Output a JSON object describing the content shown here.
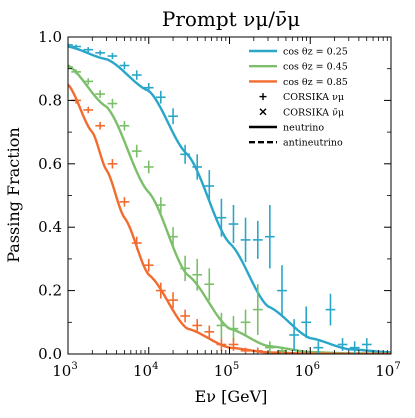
{
  "chart_data": {
    "type": "line",
    "title": "Prompt νμ/ν̄μ",
    "xlabel": "Eν [GeV]",
    "ylabel": "Passing Fraction",
    "xscale": "log",
    "xlim": [
      1000,
      10000000
    ],
    "ylim": [
      0,
      1
    ],
    "x_ticks": [
      {
        "value": 1000,
        "base": "10",
        "exp": "3"
      },
      {
        "value": 10000,
        "base": "10",
        "exp": "4"
      },
      {
        "value": 100000,
        "base": "10",
        "exp": "5"
      },
      {
        "value": 1000000,
        "base": "10",
        "exp": "6"
      },
      {
        "value": 10000000,
        "base": "10",
        "exp": "7"
      }
    ],
    "y_ticks": [
      {
        "value": 0.0,
        "label": "0.0"
      },
      {
        "value": 0.2,
        "label": "0.2"
      },
      {
        "value": 0.4,
        "label": "0.4"
      },
      {
        "value": 0.6,
        "label": "0.6"
      },
      {
        "value": 0.8,
        "label": "0.8"
      },
      {
        "value": 1.0,
        "label": "1.0"
      }
    ],
    "grid": false,
    "legend_position": "top-right",
    "series": [
      {
        "name": "cos θz = 0.25",
        "color": "#2aa6c9",
        "curve_x": [
          1000,
          3000,
          10000,
          30000,
          100000,
          300000,
          1000000,
          3000000,
          10000000
        ],
        "curve_y": [
          0.97,
          0.93,
          0.83,
          0.63,
          0.35,
          0.15,
          0.05,
          0.015,
          0.005
        ],
        "points": [
          {
            "x": 1000,
            "y": 0.975,
            "xerr": 0.06,
            "yerr": 0.006
          },
          {
            "x": 1260,
            "y": 0.97,
            "xerr": 0.06,
            "yerr": 0.006
          },
          {
            "x": 1780,
            "y": 0.96,
            "xerr": 0.06,
            "yerr": 0.008
          },
          {
            "x": 2500,
            "y": 0.95,
            "xerr": 0.06,
            "yerr": 0.008
          },
          {
            "x": 3550,
            "y": 0.94,
            "xerr": 0.06,
            "yerr": 0.01
          },
          {
            "x": 5000,
            "y": 0.91,
            "xerr": 0.06,
            "yerr": 0.012
          },
          {
            "x": 7100,
            "y": 0.88,
            "xerr": 0.06,
            "yerr": 0.015
          },
          {
            "x": 10000,
            "y": 0.84,
            "xerr": 0.06,
            "yerr": 0.015
          },
          {
            "x": 14100,
            "y": 0.81,
            "xerr": 0.06,
            "yerr": 0.02
          },
          {
            "x": 20000,
            "y": 0.75,
            "xerr": 0.06,
            "yerr": 0.025
          },
          {
            "x": 28200,
            "y": 0.63,
            "xerr": 0.06,
            "yerr": 0.03
          },
          {
            "x": 39800,
            "y": 0.59,
            "xerr": 0.06,
            "yerr": 0.04
          },
          {
            "x": 56200,
            "y": 0.53,
            "xerr": 0.06,
            "yerr": 0.05
          },
          {
            "x": 79400,
            "y": 0.43,
            "xerr": 0.06,
            "yerr": 0.06
          },
          {
            "x": 112000,
            "y": 0.41,
            "xerr": 0.06,
            "yerr": 0.06
          },
          {
            "x": 158000,
            "y": 0.36,
            "xerr": 0.06,
            "yerr": 0.07
          },
          {
            "x": 224000,
            "y": 0.36,
            "xerr": 0.06,
            "yerr": 0.06
          },
          {
            "x": 316000,
            "y": 0.37,
            "xerr": 0.06,
            "yerr": 0.1
          },
          {
            "x": 447000,
            "y": 0.2,
            "xerr": 0.06,
            "yerr": 0.08
          },
          {
            "x": 631000,
            "y": 0.06,
            "xerr": 0.06,
            "yerr": 0.05
          },
          {
            "x": 891000,
            "y": 0.1,
            "xerr": 0.06,
            "yerr": 0.05
          },
          {
            "x": 1260000,
            "y": 0.02,
            "xerr": 0.06,
            "yerr": 0.02
          },
          {
            "x": 1780000,
            "y": 0.14,
            "xerr": 0.06,
            "yerr": 0.05
          },
          {
            "x": 2510000,
            "y": 0.03,
            "xerr": 0.06,
            "yerr": 0.02
          },
          {
            "x": 3550000,
            "y": 0.02,
            "xerr": 0.06,
            "yerr": 0.02
          },
          {
            "x": 5010000,
            "y": 0.03,
            "xerr": 0.06,
            "yerr": 0.02
          }
        ]
      },
      {
        "name": "cos θz = 0.45",
        "color": "#7bbf6a",
        "curve_x": [
          1000,
          3000,
          10000,
          30000,
          100000,
          300000,
          1000000,
          3000000,
          10000000
        ],
        "curve_y": [
          0.91,
          0.78,
          0.51,
          0.25,
          0.08,
          0.025,
          0.006,
          0.002,
          0.001
        ],
        "points": [
          {
            "x": 1000,
            "y": 0.905,
            "xerr": 0.06,
            "yerr": 0.008
          },
          {
            "x": 1260,
            "y": 0.89,
            "xerr": 0.06,
            "yerr": 0.008
          },
          {
            "x": 1780,
            "y": 0.86,
            "xerr": 0.06,
            "yerr": 0.01
          },
          {
            "x": 2500,
            "y": 0.82,
            "xerr": 0.06,
            "yerr": 0.012
          },
          {
            "x": 3550,
            "y": 0.79,
            "xerr": 0.06,
            "yerr": 0.015
          },
          {
            "x": 5000,
            "y": 0.72,
            "xerr": 0.06,
            "yerr": 0.015
          },
          {
            "x": 7100,
            "y": 0.64,
            "xerr": 0.06,
            "yerr": 0.02
          },
          {
            "x": 10000,
            "y": 0.59,
            "xerr": 0.06,
            "yerr": 0.02
          },
          {
            "x": 14100,
            "y": 0.47,
            "xerr": 0.06,
            "yerr": 0.025
          },
          {
            "x": 20000,
            "y": 0.37,
            "xerr": 0.06,
            "yerr": 0.03
          },
          {
            "x": 28200,
            "y": 0.27,
            "xerr": 0.06,
            "yerr": 0.04
          },
          {
            "x": 39800,
            "y": 0.25,
            "xerr": 0.06,
            "yerr": 0.05
          },
          {
            "x": 56200,
            "y": 0.22,
            "xerr": 0.06,
            "yerr": 0.05
          },
          {
            "x": 79400,
            "y": 0.09,
            "xerr": 0.06,
            "yerr": 0.04
          },
          {
            "x": 112000,
            "y": 0.08,
            "xerr": 0.06,
            "yerr": 0.04
          },
          {
            "x": 158000,
            "y": 0.1,
            "xerr": 0.06,
            "yerr": 0.04
          },
          {
            "x": 224000,
            "y": 0.14,
            "xerr": 0.06,
            "yerr": 0.08
          },
          {
            "x": 316000,
            "y": 0.02,
            "xerr": 0.06,
            "yerr": 0.02
          },
          {
            "x": 447000,
            "y": 0.01,
            "xerr": 0.06,
            "yerr": 0.01
          }
        ]
      },
      {
        "name": "cos θz = 0.85",
        "color": "#f26b2f",
        "curve_x": [
          1000,
          2000,
          3000,
          5000,
          10000,
          30000,
          100000,
          300000,
          1000000,
          10000000
        ],
        "curve_y": [
          0.85,
          0.7,
          0.58,
          0.43,
          0.25,
          0.08,
          0.02,
          0.005,
          0.001,
          0.0
        ],
        "points": [
          {
            "x": 1260,
            "y": 0.8,
            "xerr": 0.06,
            "yerr": 0.01
          },
          {
            "x": 1780,
            "y": 0.77,
            "xerr": 0.06,
            "yerr": 0.01
          },
          {
            "x": 2500,
            "y": 0.72,
            "xerr": 0.06,
            "yerr": 0.012
          },
          {
            "x": 3550,
            "y": 0.6,
            "xerr": 0.06,
            "yerr": 0.015
          },
          {
            "x": 5000,
            "y": 0.48,
            "xerr": 0.06,
            "yerr": 0.015
          },
          {
            "x": 7100,
            "y": 0.35,
            "xerr": 0.06,
            "yerr": 0.02
          },
          {
            "x": 10000,
            "y": 0.28,
            "xerr": 0.06,
            "yerr": 0.02
          },
          {
            "x": 14100,
            "y": 0.2,
            "xerr": 0.06,
            "yerr": 0.025
          },
          {
            "x": 20000,
            "y": 0.17,
            "xerr": 0.06,
            "yerr": 0.025
          },
          {
            "x": 28200,
            "y": 0.12,
            "xerr": 0.06,
            "yerr": 0.02
          },
          {
            "x": 39800,
            "y": 0.09,
            "xerr": 0.06,
            "yerr": 0.02
          },
          {
            "x": 56200,
            "y": 0.07,
            "xerr": 0.06,
            "yerr": 0.02
          },
          {
            "x": 79400,
            "y": 0.03,
            "xerr": 0.06,
            "yerr": 0.02
          },
          {
            "x": 112000,
            "y": 0.03,
            "xerr": 0.06,
            "yerr": 0.02
          },
          {
            "x": 158000,
            "y": 0.01,
            "xerr": 0.06,
            "yerr": 0.01
          },
          {
            "x": 224000,
            "y": 0.01,
            "xerr": 0.06,
            "yerr": 0.01
          }
        ]
      }
    ],
    "legend": [
      {
        "kind": "line",
        "color": "#2aa6c9",
        "label": "cos θz = 0.25"
      },
      {
        "kind": "line",
        "color": "#7bbf6a",
        "label": "cos θz = 0.45"
      },
      {
        "kind": "line",
        "color": "#f26b2f",
        "label": "cos θz = 0.85"
      },
      {
        "kind": "plus",
        "color": "#000000",
        "label": "CORSIKA νμ"
      },
      {
        "kind": "cross",
        "color": "#000000",
        "label": "CORSIKA ν̄μ"
      },
      {
        "kind": "solid",
        "color": "#000000",
        "label": "neutrino"
      },
      {
        "kind": "dashed",
        "color": "#000000",
        "label": "antineutrino"
      }
    ]
  }
}
